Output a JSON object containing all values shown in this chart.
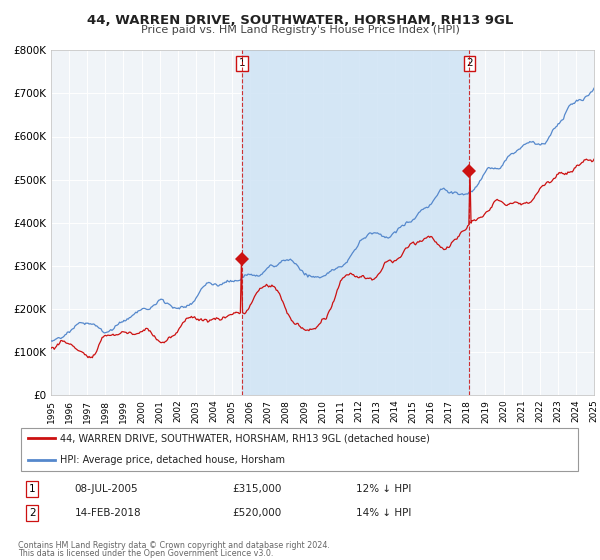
{
  "title_line1": "44, WARREN DRIVE, SOUTHWATER, HORSHAM, RH13 9GL",
  "title_line2": "Price paid vs. HM Land Registry's House Price Index (HPI)",
  "background_color": "#ffffff",
  "plot_bg_color": "#f0f4f8",
  "hpi_color": "#5588cc",
  "price_color": "#cc1111",
  "shade_color": "#d0e4f5",
  "ylim": [
    0,
    800000
  ],
  "yticks": [
    0,
    100000,
    200000,
    300000,
    400000,
    500000,
    600000,
    700000,
    800000
  ],
  "ytick_labels": [
    "£0",
    "£100K",
    "£200K",
    "£300K",
    "£400K",
    "£500K",
    "£600K",
    "£700K",
    "£800K"
  ],
  "sale1_x": 2005.54,
  "sale1_price": 315000,
  "sale2_x": 2018.12,
  "sale2_price": 520000,
  "legend_label_red": "44, WARREN DRIVE, SOUTHWATER, HORSHAM, RH13 9GL (detached house)",
  "legend_label_blue": "HPI: Average price, detached house, Horsham",
  "footer1": "Contains HM Land Registry data © Crown copyright and database right 2024.",
  "footer2": "This data is licensed under the Open Government Licence v3.0.",
  "xstart": 1995,
  "xend": 2025
}
